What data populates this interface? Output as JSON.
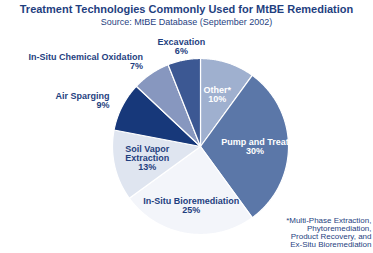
{
  "chart_data": {
    "type": "pie",
    "title": "Treatment Technologies Commonly Used for MtBE Remediation",
    "subtitle": "Source: MtBE Database (September 2002)",
    "categories": [
      "Other*",
      "Pump and Treat",
      "In-Situ Bioremediation",
      "Soil Vapor Extraction",
      "Air Sparging",
      "In-Situ Chemical Oxidation",
      "Excavation"
    ],
    "values": [
      10,
      30,
      25,
      13,
      9,
      7,
      6
    ],
    "value_labels": [
      "10%",
      "30%",
      "25%",
      "13%",
      "9%",
      "7%",
      "6%"
    ],
    "colors": [
      "#9fb0cf",
      "#5b77a8",
      "#f3f5fa",
      "#dfe5f0",
      "#17387a",
      "#8797bf",
      "#3c5893"
    ],
    "data_labels": true,
    "annotations": [
      "*Multi-Phase Extraction, Phytoremediation, Product Recovery, and Ex-Situ Bioremediation"
    ]
  }
}
